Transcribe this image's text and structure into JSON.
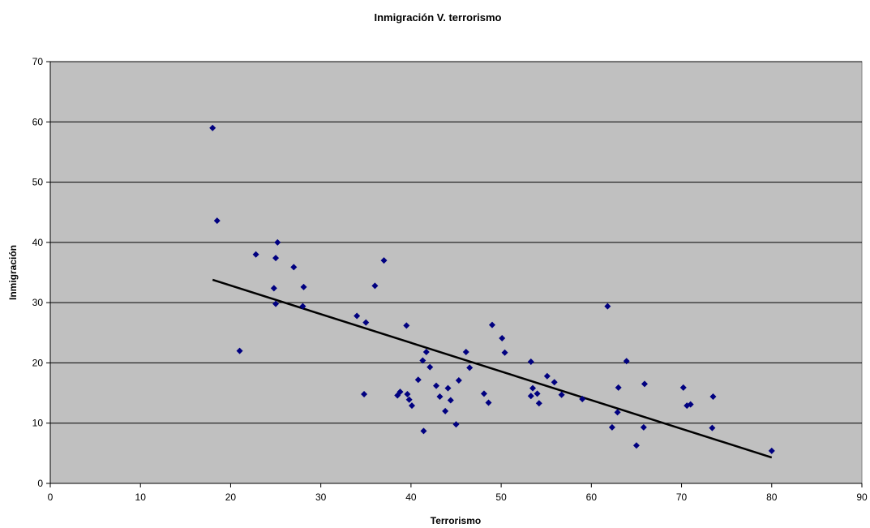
{
  "chart_data": {
    "type": "scatter",
    "title": "Inmigración V. terrorismo",
    "xlabel": "Terrorismo",
    "ylabel": "Inmigración",
    "xlim": [
      0,
      90
    ],
    "ylim": [
      0,
      70
    ],
    "xticks": [
      "0",
      "10",
      "20",
      "30",
      "40",
      "50",
      "60",
      "70",
      "80",
      "90"
    ],
    "yticks": [
      "0",
      "10",
      "20",
      "30",
      "40",
      "50",
      "60",
      "70"
    ],
    "grid": true,
    "legend": false,
    "colors": {
      "plot_background": "#c0c0c0",
      "points": "#000080",
      "trendline": "#000000",
      "gridlines": "#000000"
    },
    "points": [
      {
        "x": 18,
        "y": 59
      },
      {
        "x": 18.5,
        "y": 43.6
      },
      {
        "x": 21,
        "y": 22
      },
      {
        "x": 22.8,
        "y": 38
      },
      {
        "x": 24.8,
        "y": 32.4
      },
      {
        "x": 25,
        "y": 37.4
      },
      {
        "x": 25,
        "y": 29.8
      },
      {
        "x": 25.2,
        "y": 40
      },
      {
        "x": 27,
        "y": 35.9
      },
      {
        "x": 28,
        "y": 29.4
      },
      {
        "x": 28.1,
        "y": 32.6
      },
      {
        "x": 34,
        "y": 27.8
      },
      {
        "x": 34.8,
        "y": 14.8
      },
      {
        "x": 35,
        "y": 26.7
      },
      {
        "x": 36,
        "y": 32.8
      },
      {
        "x": 37,
        "y": 37
      },
      {
        "x": 38.5,
        "y": 14.6
      },
      {
        "x": 38.8,
        "y": 15.2
      },
      {
        "x": 39.5,
        "y": 26.2
      },
      {
        "x": 39.6,
        "y": 14.8
      },
      {
        "x": 39.8,
        "y": 13.9
      },
      {
        "x": 40.1,
        "y": 12.9
      },
      {
        "x": 40.8,
        "y": 17.2
      },
      {
        "x": 41.3,
        "y": 20.4
      },
      {
        "x": 41.4,
        "y": 8.7
      },
      {
        "x": 41.7,
        "y": 21.8
      },
      {
        "x": 42.1,
        "y": 19.3
      },
      {
        "x": 42.8,
        "y": 16.2
      },
      {
        "x": 43.2,
        "y": 14.4
      },
      {
        "x": 43.8,
        "y": 12
      },
      {
        "x": 44.1,
        "y": 15.8
      },
      {
        "x": 44.4,
        "y": 13.8
      },
      {
        "x": 45,
        "y": 9.8
      },
      {
        "x": 45.3,
        "y": 17.1
      },
      {
        "x": 46.1,
        "y": 21.8
      },
      {
        "x": 46.5,
        "y": 19.2
      },
      {
        "x": 48.1,
        "y": 14.9
      },
      {
        "x": 48.6,
        "y": 13.4
      },
      {
        "x": 49,
        "y": 26.3
      },
      {
        "x": 50.1,
        "y": 24.1
      },
      {
        "x": 50.4,
        "y": 21.7
      },
      {
        "x": 53.3,
        "y": 20.2
      },
      {
        "x": 53.3,
        "y": 14.5
      },
      {
        "x": 53.5,
        "y": 15.8
      },
      {
        "x": 54,
        "y": 14.9
      },
      {
        "x": 54.2,
        "y": 13.3
      },
      {
        "x": 55.1,
        "y": 17.8
      },
      {
        "x": 55.9,
        "y": 16.8
      },
      {
        "x": 56.7,
        "y": 14.7
      },
      {
        "x": 59,
        "y": 14
      },
      {
        "x": 61.8,
        "y": 29.4
      },
      {
        "x": 62.3,
        "y": 9.3
      },
      {
        "x": 62.9,
        "y": 11.8
      },
      {
        "x": 63,
        "y": 15.9
      },
      {
        "x": 63.9,
        "y": 20.3
      },
      {
        "x": 65,
        "y": 6.3
      },
      {
        "x": 65.8,
        "y": 9.3
      },
      {
        "x": 65.9,
        "y": 16.5
      },
      {
        "x": 70.2,
        "y": 15.9
      },
      {
        "x": 70.6,
        "y": 12.9
      },
      {
        "x": 71,
        "y": 13.1
      },
      {
        "x": 73.4,
        "y": 9.2
      },
      {
        "x": 73.5,
        "y": 14.4
      },
      {
        "x": 80,
        "y": 5.4
      }
    ],
    "trendline": {
      "x": [
        18,
        80
      ],
      "y": [
        33.8,
        4.3
      ]
    }
  }
}
